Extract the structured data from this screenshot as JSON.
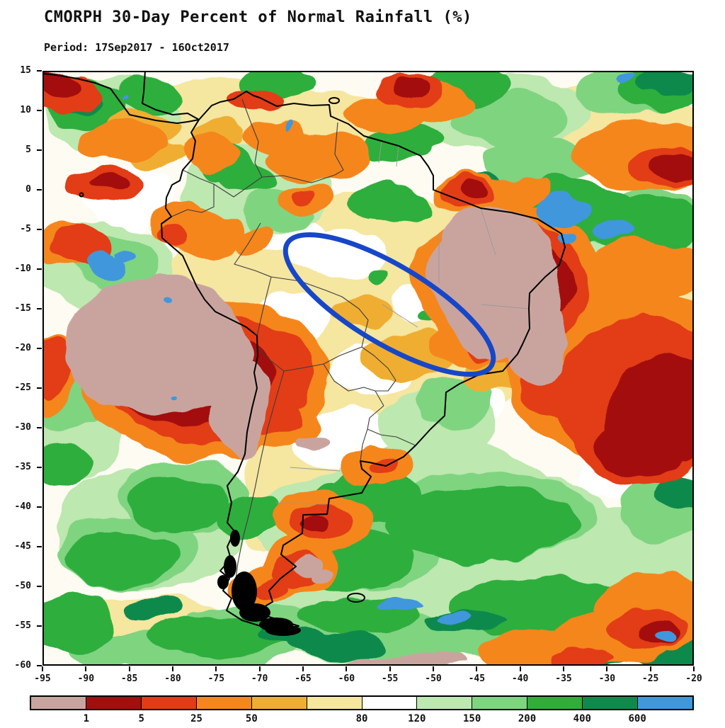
{
  "header": {
    "title": "CMORPH 30-Day Percent of Normal Rainfall (%)",
    "subtitle": "Period: 17Sep2017 - 16Oct2017"
  },
  "map": {
    "y_ticks": [
      "15",
      "10",
      "5",
      "0",
      "-5",
      "-10",
      "-15",
      "-20",
      "-25",
      "-30",
      "-35",
      "-40",
      "-45",
      "-50",
      "-55",
      "-60"
    ],
    "x_ticks": [
      "-95",
      "-90",
      "-85",
      "-80",
      "-75",
      "-70",
      "-65",
      "-60",
      "-55",
      "-50",
      "-45",
      "-40",
      "-35",
      "-30",
      "-25",
      "-20"
    ],
    "annotation": {
      "shape": "ellipse",
      "color": "#1747C8",
      "region": "east-central Brazil"
    }
  },
  "legend": {
    "labels": [
      "1",
      "5",
      "25",
      "50",
      "80",
      "120",
      "150",
      "200",
      "400",
      "600"
    ],
    "colors": [
      "#C9A49E",
      "#A30F0F",
      "#E23C14",
      "#F5861E",
      "#EFAE33",
      "#F5E6A0",
      "#FFFFFF",
      "#BDE8AF",
      "#7FD480",
      "#2FAE3C",
      "#0E8A4C",
      "#3F97DC"
    ]
  }
}
